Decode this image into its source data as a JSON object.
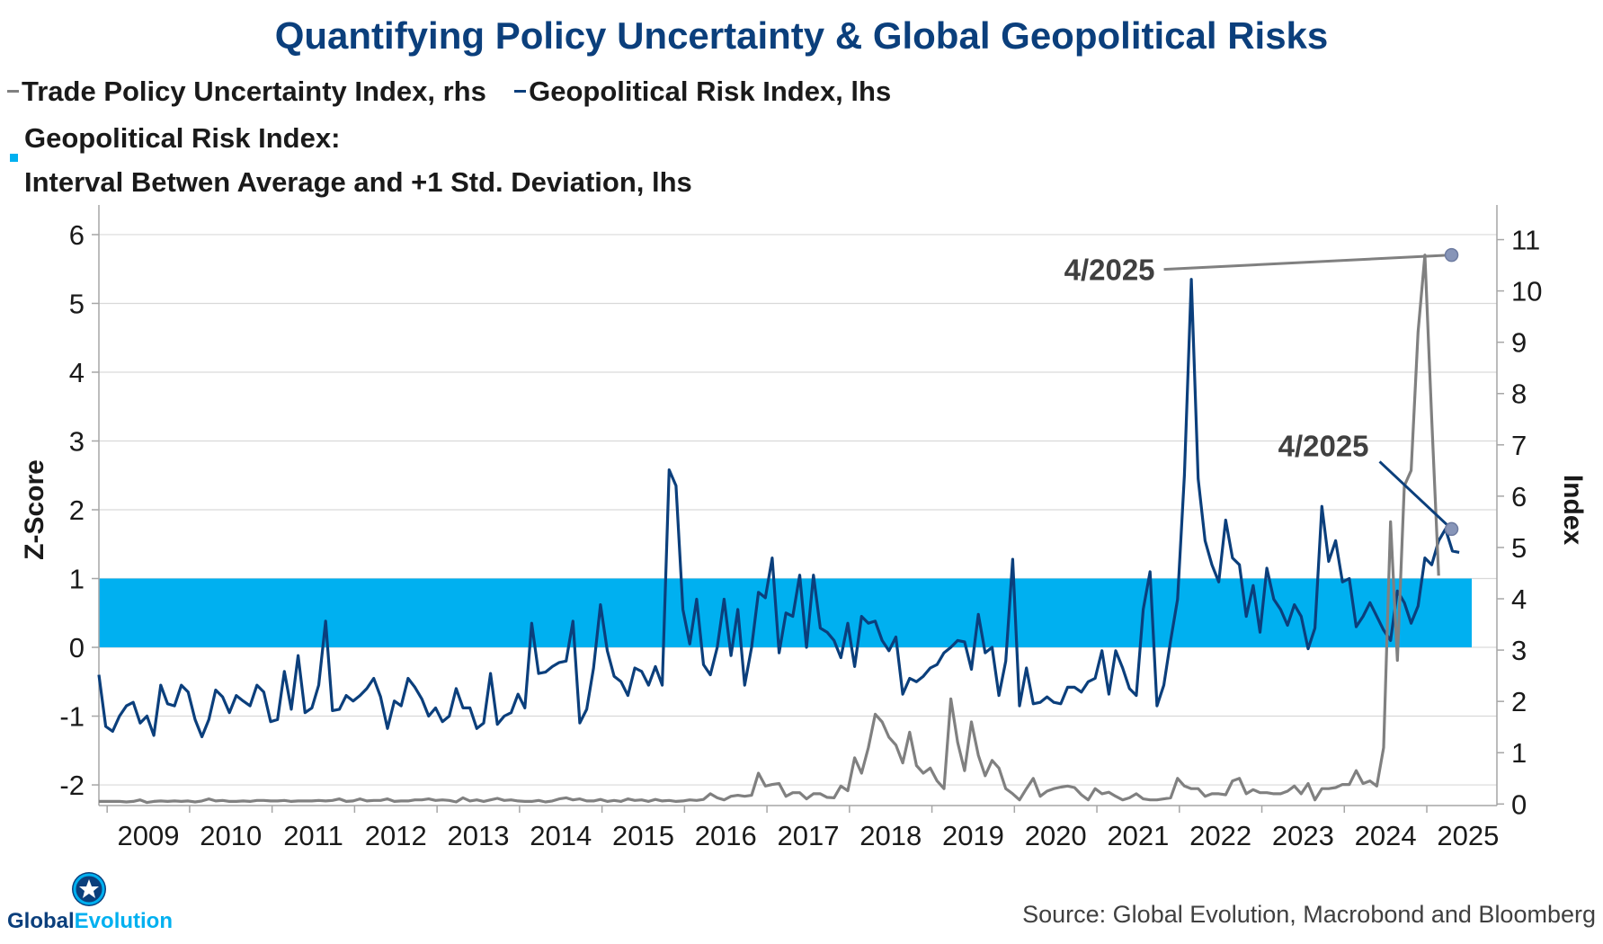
{
  "title": "Quantifying Policy Uncertainty & Global Geopolitical Risks",
  "legend": {
    "trade": "Trade Policy Uncertainty Index, rhs",
    "geo": "Geopolitical Risk Index, lhs",
    "band_line1": "Geopolitical Risk Index:",
    "band_line2": "Interval Betwen Average and +1 Std. Deviation, lhs"
  },
  "source": "Source: Global Evolution, Macrobond and Bloomberg",
  "logo": {
    "part1": "Global",
    "part2": "Evolution",
    "icon": "star-globe-icon"
  },
  "colors": {
    "title": "#0b3f7c",
    "geo": "#0b3f7c",
    "trade": "#808080",
    "band": "#00b0f0",
    "grid": "#d9d9d9"
  },
  "chart_data": {
    "type": "line",
    "x_start": 2008.9,
    "x_step": 0.0833,
    "xlim": [
      2008.9,
      2025.85
    ],
    "xticks": [
      "2009",
      "2010",
      "2011",
      "2012",
      "2013",
      "2014",
      "2015",
      "2016",
      "2017",
      "2018",
      "2019",
      "2020",
      "2021",
      "2022",
      "2023",
      "2024",
      "2025"
    ],
    "ylabel": "Z-Score",
    "ylim": [
      -2.3,
      6.3
    ],
    "yticks": [
      -2,
      -1,
      0,
      1,
      2,
      3,
      4,
      5,
      6
    ],
    "y2label": "Index",
    "y2lim": [
      -0.03,
      11.5
    ],
    "y2ticks": [
      0,
      1,
      2,
      3,
      4,
      5,
      6,
      7,
      8,
      9,
      10,
      11
    ],
    "band": {
      "label": "Interval Betwen Average and +1 Std. Deviation",
      "y0": 0,
      "y1": 1
    },
    "series": [
      {
        "name": "Geopolitical Risk Index, lhs",
        "axis": "left",
        "values": [
          -0.4,
          -1.15,
          -1.22,
          -1.0,
          -0.85,
          -0.8,
          -1.1,
          -1.0,
          -1.28,
          -0.55,
          -0.82,
          -0.85,
          -0.55,
          -0.65,
          -1.05,
          -1.3,
          -1.05,
          -0.62,
          -0.72,
          -0.95,
          -0.7,
          -0.78,
          -0.85,
          -0.55,
          -0.65,
          -1.08,
          -1.05,
          -0.35,
          -0.9,
          -0.12,
          -0.95,
          -0.88,
          -0.55,
          0.38,
          -0.92,
          -0.9,
          -0.7,
          -0.78,
          -0.7,
          -0.6,
          -0.45,
          -0.72,
          -1.18,
          -0.78,
          -0.85,
          -0.45,
          -0.58,
          -0.75,
          -1.0,
          -0.88,
          -1.08,
          -1.0,
          -0.6,
          -0.88,
          -0.88,
          -1.18,
          -1.1,
          -0.38,
          -1.12,
          -1.0,
          -0.95,
          -0.68,
          -0.88,
          0.35,
          -0.38,
          -0.36,
          -0.28,
          -0.22,
          -0.2,
          0.38,
          -1.1,
          -0.9,
          -0.3,
          0.62,
          -0.05,
          -0.42,
          -0.5,
          -0.7,
          -0.3,
          -0.35,
          -0.55,
          -0.28,
          -0.55,
          2.58,
          2.35,
          0.55,
          0.05,
          0.7,
          -0.25,
          -0.4,
          0.0,
          0.7,
          -0.12,
          0.55,
          -0.55,
          0.0,
          0.8,
          0.72,
          1.3,
          -0.08,
          0.5,
          0.45,
          1.05,
          0.0,
          1.05,
          0.28,
          0.22,
          0.1,
          -0.15,
          0.35,
          -0.28,
          0.45,
          0.35,
          0.38,
          0.1,
          -0.05,
          0.15,
          -0.68,
          -0.45,
          -0.5,
          -0.42,
          -0.3,
          -0.25,
          -0.08,
          0.0,
          0.1,
          0.08,
          -0.32,
          0.48,
          -0.08,
          0.0,
          -0.7,
          -0.2,
          1.28,
          -0.85,
          -0.3,
          -0.82,
          -0.8,
          -0.72,
          -0.8,
          -0.82,
          -0.58,
          -0.58,
          -0.65,
          -0.5,
          -0.45,
          -0.05,
          -0.68,
          -0.05,
          -0.3,
          -0.6,
          -0.7,
          0.55,
          1.1,
          -0.85,
          -0.55,
          0.1,
          0.7,
          2.5,
          5.35,
          2.45,
          1.55,
          1.2,
          0.95,
          1.85,
          1.3,
          1.2,
          0.45,
          0.9,
          0.22,
          1.15,
          0.7,
          0.55,
          0.32,
          0.62,
          0.45,
          -0.02,
          0.28,
          2.05,
          1.25,
          1.55,
          0.95,
          1.0,
          0.3,
          0.45,
          0.65,
          0.45,
          0.25,
          0.1,
          0.82,
          0.65,
          0.35,
          0.6,
          1.3,
          1.2,
          1.55,
          1.72,
          1.4,
          1.38
        ]
      },
      {
        "name": "Trade Policy Uncertainty Index, rhs",
        "axis": "right",
        "values": [
          0.05,
          0.05,
          0.05,
          0.05,
          0.04,
          0.05,
          0.08,
          0.03,
          0.05,
          0.06,
          0.05,
          0.06,
          0.05,
          0.06,
          0.04,
          0.06,
          0.1,
          0.06,
          0.07,
          0.05,
          0.05,
          0.06,
          0.05,
          0.07,
          0.07,
          0.06,
          0.06,
          0.07,
          0.05,
          0.06,
          0.06,
          0.06,
          0.07,
          0.06,
          0.07,
          0.1,
          0.05,
          0.06,
          0.1,
          0.06,
          0.07,
          0.07,
          0.1,
          0.05,
          0.06,
          0.06,
          0.08,
          0.08,
          0.1,
          0.07,
          0.08,
          0.07,
          0.04,
          0.12,
          0.06,
          0.08,
          0.05,
          0.08,
          0.11,
          0.07,
          0.08,
          0.06,
          0.05,
          0.05,
          0.07,
          0.04,
          0.06,
          0.1,
          0.12,
          0.08,
          0.1,
          0.06,
          0.06,
          0.09,
          0.05,
          0.07,
          0.05,
          0.1,
          0.07,
          0.08,
          0.05,
          0.09,
          0.06,
          0.07,
          0.05,
          0.06,
          0.08,
          0.07,
          0.09,
          0.2,
          0.12,
          0.08,
          0.15,
          0.17,
          0.15,
          0.17,
          0.6,
          0.35,
          0.38,
          0.4,
          0.15,
          0.22,
          0.22,
          0.1,
          0.2,
          0.2,
          0.13,
          0.12,
          0.35,
          0.26,
          0.9,
          0.6,
          1.1,
          1.75,
          1.6,
          1.3,
          1.15,
          0.8,
          1.4,
          0.75,
          0.6,
          0.7,
          0.45,
          0.3,
          2.05,
          1.2,
          0.65,
          1.6,
          0.95,
          0.55,
          0.85,
          0.7,
          0.3,
          0.2,
          0.08,
          0.3,
          0.5,
          0.15,
          0.25,
          0.3,
          0.33,
          0.35,
          0.32,
          0.18,
          0.08,
          0.3,
          0.2,
          0.23,
          0.15,
          0.08,
          0.12,
          0.2,
          0.1,
          0.08,
          0.08,
          0.1,
          0.12,
          0.5,
          0.35,
          0.3,
          0.3,
          0.15,
          0.2,
          0.2,
          0.18,
          0.45,
          0.5,
          0.2,
          0.28,
          0.22,
          0.22,
          0.2,
          0.2,
          0.25,
          0.35,
          0.2,
          0.4,
          0.08,
          0.3,
          0.3,
          0.32,
          0.38,
          0.38,
          0.65,
          0.4,
          0.45,
          0.35,
          1.1,
          5.5,
          2.8,
          6.2,
          6.5,
          9.2,
          10.7,
          7.5,
          4.45
        ]
      }
    ],
    "annotations": [
      {
        "text": "4/2025",
        "series": "Trade Policy Uncertainty Index, rhs",
        "x": 2025.3,
        "y": 10.7
      },
      {
        "text": "4/2025",
        "series": "Geopolitical Risk Index, lhs",
        "x": 2025.3,
        "y": 1.72
      }
    ]
  }
}
